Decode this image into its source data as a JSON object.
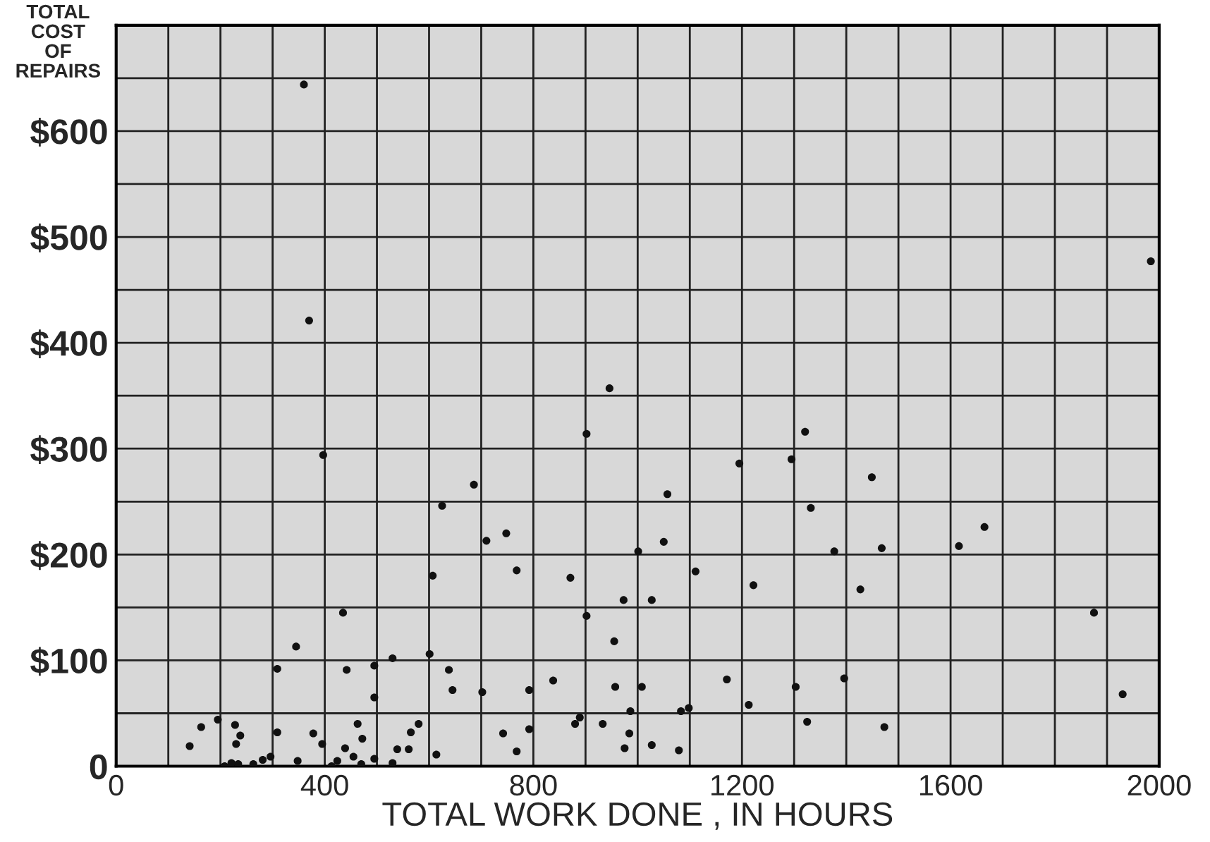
{
  "chart_data": {
    "type": "scatter",
    "xlabel": "TOTAL WORK DONE , IN HOURS",
    "ylabel": "TOTAL\nCOST\nOF\nREPAIRS",
    "x": [
      397,
      686,
      625,
      710,
      748,
      607,
      768,
      871,
      902,
      902,
      435,
      345,
      309,
      442,
      495,
      530,
      601,
      638,
      495,
      645,
      702,
      792,
      838,
      889,
      880,
      792,
      742,
      768,
      580,
      565,
      561,
      539,
      614,
      530,
      495,
      470,
      463,
      472,
      439,
      455,
      424,
      413,
      395,
      378,
      348,
      309,
      296,
      281,
      263,
      238,
      234,
      228,
      230,
      221,
      208,
      195,
      163,
      141,
      1321,
      1195,
      1295,
      1449,
      1332,
      1057,
      1665,
      1616,
      1468,
      1377,
      1050,
      1001,
      1111,
      1222,
      1427,
      1027,
      973,
      1875,
      955,
      1171,
      1396,
      1303,
      957,
      1008,
      1930,
      1213,
      1098,
      1083,
      986,
      933,
      984,
      1325,
      1473,
      975,
      1027,
      1079,
      360,
      370,
      1984,
      946
    ],
    "values": [
      294,
      266,
      246,
      213,
      220,
      180,
      185,
      178,
      314,
      142,
      145,
      113,
      92,
      91,
      95,
      102,
      106,
      91,
      65,
      72,
      70,
      72,
      81,
      46,
      40,
      35,
      31,
      14,
      40,
      32,
      16,
      16,
      11,
      3,
      7,
      2,
      40,
      26,
      17,
      9,
      5,
      0,
      21,
      31,
      5,
      32,
      9,
      6,
      2,
      29,
      2,
      39,
      21,
      3,
      0,
      44,
      37,
      19,
      316,
      286,
      290,
      273,
      244,
      257,
      226,
      208,
      206,
      203,
      212,
      203,
      184,
      171,
      167,
      157,
      157,
      145,
      118,
      82,
      83,
      75,
      75,
      75,
      68,
      58,
      55,
      52,
      52,
      40,
      31,
      42,
      37,
      17,
      20,
      15,
      644,
      421,
      477,
      357
    ],
    "color": "#111111",
    "marker": "circle",
    "xlim": [
      0,
      2000
    ],
    "ylim": [
      0,
      700
    ],
    "xticks": [
      0,
      {
        "value": 100,
        "label": null
      },
      {
        "value": 200,
        "label": null
      },
      {
        "value": 300,
        "label": null
      },
      400,
      {
        "value": 500,
        "label": null
      },
      {
        "value": 600,
        "label": null
      },
      {
        "value": 700,
        "label": null
      },
      800,
      {
        "value": 900,
        "label": null
      },
      {
        "value": 1000,
        "label": null
      },
      {
        "value": 1100,
        "label": null
      },
      1200,
      {
        "value": 1300,
        "label": null
      },
      {
        "value": 1400,
        "label": null
      },
      {
        "value": 1500,
        "label": null
      },
      1600,
      {
        "value": 1700,
        "label": null
      },
      {
        "value": 1800,
        "label": null
      },
      {
        "value": 1900,
        "label": null
      },
      2000
    ],
    "yticks": [
      0,
      {
        "value": 50,
        "label": null
      },
      {
        "value": 100,
        "label": "$100"
      },
      {
        "value": 150,
        "label": null
      },
      {
        "value": 200,
        "label": "$200"
      },
      {
        "value": 250,
        "label": null
      },
      {
        "value": 300,
        "label": "$300"
      },
      {
        "value": 350,
        "label": null
      },
      {
        "value": 400,
        "label": "$400"
      },
      {
        "value": 450,
        "label": null
      },
      {
        "value": 500,
        "label": "$500"
      },
      {
        "value": 550,
        "label": null
      },
      {
        "value": 600,
        "label": "$600"
      },
      {
        "value": 650,
        "label": null
      },
      {
        "value": 700,
        "label": null
      }
    ],
    "grid": true
  }
}
